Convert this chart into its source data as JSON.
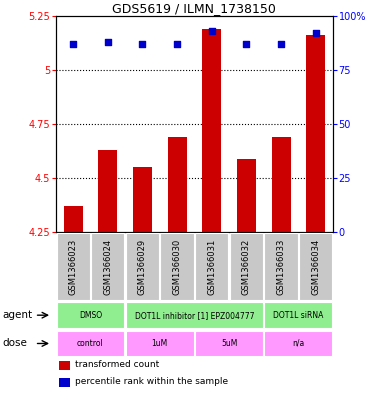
{
  "title": "GDS5619 / ILMN_1738150",
  "samples": [
    "GSM1366023",
    "GSM1366024",
    "GSM1366029",
    "GSM1366030",
    "GSM1366031",
    "GSM1366032",
    "GSM1366033",
    "GSM1366034"
  ],
  "red_values": [
    4.37,
    4.63,
    4.55,
    4.69,
    5.19,
    4.59,
    4.69,
    5.16
  ],
  "blue_values": [
    87,
    88,
    87,
    87,
    93,
    87,
    87,
    92
  ],
  "ymin": 4.25,
  "ymax": 5.25,
  "yticks_left": [
    4.25,
    4.5,
    4.75,
    5.0,
    5.25
  ],
  "yticks_right": [
    0,
    25,
    50,
    75,
    100
  ],
  "ytick_labels_left": [
    "4.25",
    "4.5",
    "4.75",
    "5",
    "5.25"
  ],
  "ytick_labels_right": [
    "0",
    "25",
    "50",
    "75",
    "100%"
  ],
  "grid_lines": [
    4.5,
    4.75,
    5.0
  ],
  "bar_color": "#CC0000",
  "dot_color": "#0000CC",
  "agent_groups": [
    {
      "text": "DMSO",
      "start": 0,
      "end": 2,
      "color": "#90EE90"
    },
    {
      "text": "DOT1L inhibitor [1] EPZ004777",
      "start": 2,
      "end": 6,
      "color": "#90EE90"
    },
    {
      "text": "DOT1L siRNA",
      "start": 6,
      "end": 8,
      "color": "#90EE90"
    }
  ],
  "dose_groups": [
    {
      "text": "control",
      "start": 0,
      "end": 2,
      "color": "#FF99FF"
    },
    {
      "text": "1uM",
      "start": 2,
      "end": 4,
      "color": "#FF99FF"
    },
    {
      "text": "5uM",
      "start": 4,
      "end": 6,
      "color": "#FF99FF"
    },
    {
      "text": "n/a",
      "start": 6,
      "end": 8,
      "color": "#FF99FF"
    }
  ],
  "legend_red": "transformed count",
  "legend_blue": "percentile rank within the sample",
  "bar_width": 0.55
}
